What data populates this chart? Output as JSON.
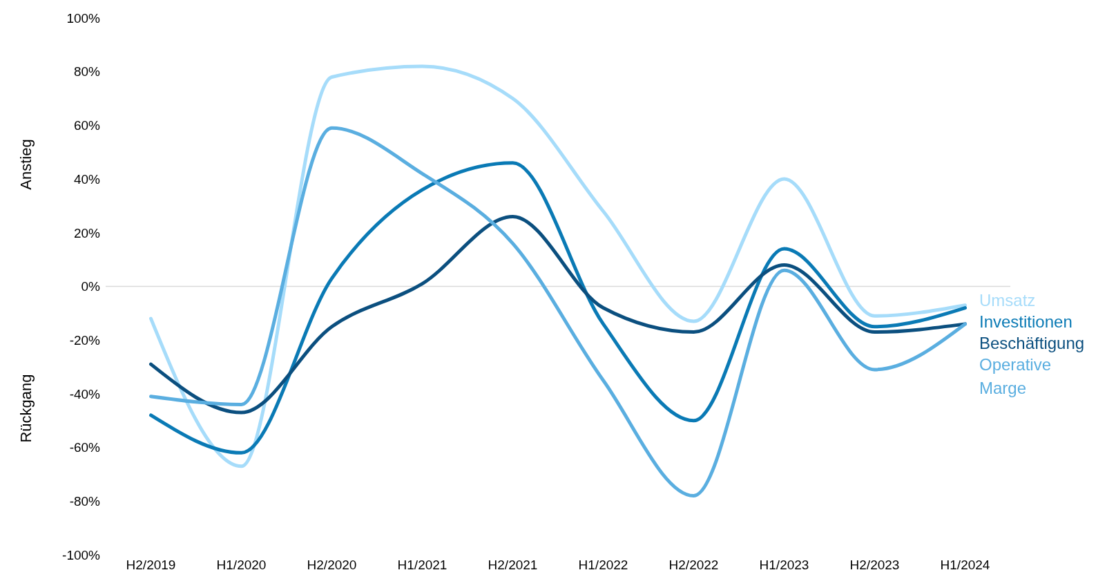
{
  "chart_data": {
    "type": "line",
    "categories": [
      "H2/2019",
      "H1/2020",
      "H2/2020",
      "H1/2021",
      "H2/2021",
      "H1/2022",
      "H2/2022",
      "H1/2023",
      "H2/2023",
      "H1/2024"
    ],
    "series": [
      {
        "name": "Umsatz",
        "color": "#a6dcfa",
        "values": [
          -12,
          -67,
          78,
          82,
          70,
          28,
          -13,
          40,
          -11,
          -7
        ]
      },
      {
        "name": "Investitionen",
        "color": "#0a7ab5",
        "values": [
          -48,
          -62,
          3,
          36,
          46,
          -14,
          -50,
          14,
          -15,
          -8
        ]
      },
      {
        "name": "Beschäftigung",
        "color": "#0b4f7f",
        "values": [
          -29,
          -47,
          -15,
          1,
          26,
          -8,
          -17,
          8,
          -17,
          -14
        ]
      },
      {
        "name": "Operative Marge",
        "color": "#5aaee0",
        "values": [
          -41,
          -44,
          59,
          42,
          16,
          -35,
          -78,
          6,
          -31,
          -14
        ]
      }
    ],
    "ylim": [
      -100,
      100
    ],
    "yticks": [
      {
        "value": -100,
        "label": "-100%"
      },
      {
        "value": -80,
        "label": "-80%"
      },
      {
        "value": -60,
        "label": "-60%"
      },
      {
        "value": -40,
        "label": "-40%"
      },
      {
        "value": -20,
        "label": "-20%"
      },
      {
        "value": 0,
        "label": "0%"
      },
      {
        "value": 20,
        "label": "20%"
      },
      {
        "value": 40,
        "label": "40%"
      },
      {
        "value": 60,
        "label": "60%"
      },
      {
        "value": 80,
        "label": "80%"
      },
      {
        "value": 100,
        "label": "100%"
      }
    ],
    "ref_lines": [
      {
        "axis": "y",
        "value": 0,
        "color": "#d9d9d9"
      }
    ],
    "annotations": [
      "Anstieg",
      "Rückgang"
    ],
    "marker": "none",
    "line_style": "solid",
    "legend": "right",
    "grid": false
  }
}
